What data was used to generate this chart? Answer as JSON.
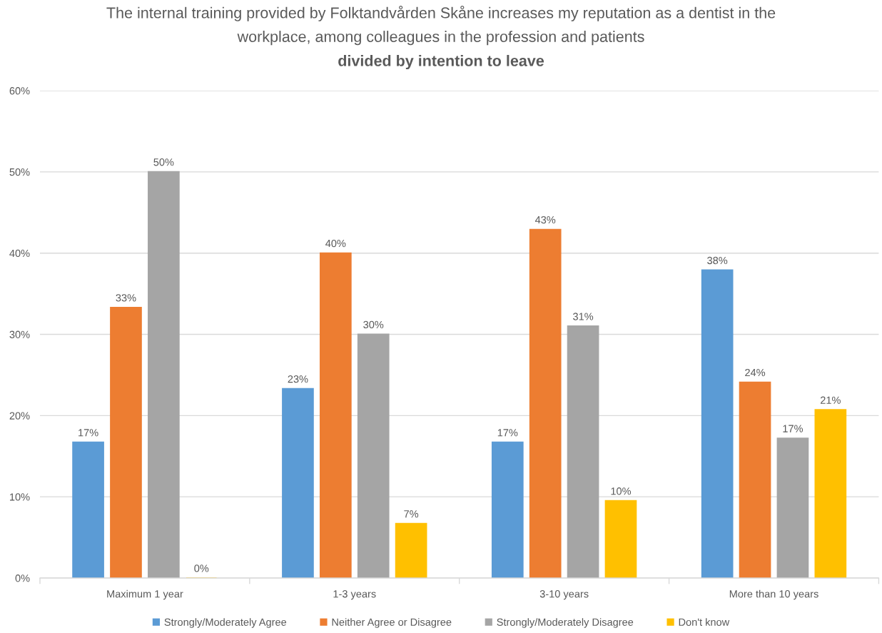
{
  "chart_data": {
    "type": "bar",
    "title": "The internal training provided by Folktandvården Skåne increases my reputation as a dentist in the workplace, among colleagues in the profession and patients",
    "subtitle": "divided by intention to leave",
    "categories": [
      "Maximum 1 year",
      "1-3 years",
      "3-10 years",
      "More than 10 years"
    ],
    "series": [
      {
        "name": "Strongly/Moderately Agree",
        "color": "#5b9bd5",
        "values": [
          16.7,
          23.3,
          16.7,
          37.9
        ],
        "value_labels": [
          "17%",
          "23%",
          "17%",
          "38%"
        ]
      },
      {
        "name": "Neither Agree or Disagree",
        "color": "#ed7d31",
        "values": [
          33.3,
          40,
          42.9,
          24.1
        ],
        "value_labels": [
          "33%",
          "40%",
          "43%",
          "24%"
        ]
      },
      {
        "name": "Strongly/Moderately Disagree",
        "color": "#a5a5a5",
        "values": [
          50,
          30,
          31,
          17.2
        ],
        "value_labels": [
          "50%",
          "30%",
          "31%",
          "17%"
        ]
      },
      {
        "name": "Don't know",
        "color": "#ffc000",
        "values": [
          0,
          6.7,
          9.5,
          20.7
        ],
        "value_labels": [
          "0%",
          "7%",
          "10%",
          "21%"
        ]
      }
    ],
    "ylim": [
      0,
      60
    ],
    "yticks": [
      {
        "value": 0,
        "label": "0%"
      },
      {
        "value": 10,
        "label": "10%"
      },
      {
        "value": 20,
        "label": "20%"
      },
      {
        "value": 30,
        "label": "30%"
      },
      {
        "value": 40,
        "label": "40%"
      },
      {
        "value": 50,
        "label": "50%"
      },
      {
        "value": 60,
        "label": "60%"
      }
    ],
    "grid": "y",
    "legend": "bottom"
  }
}
